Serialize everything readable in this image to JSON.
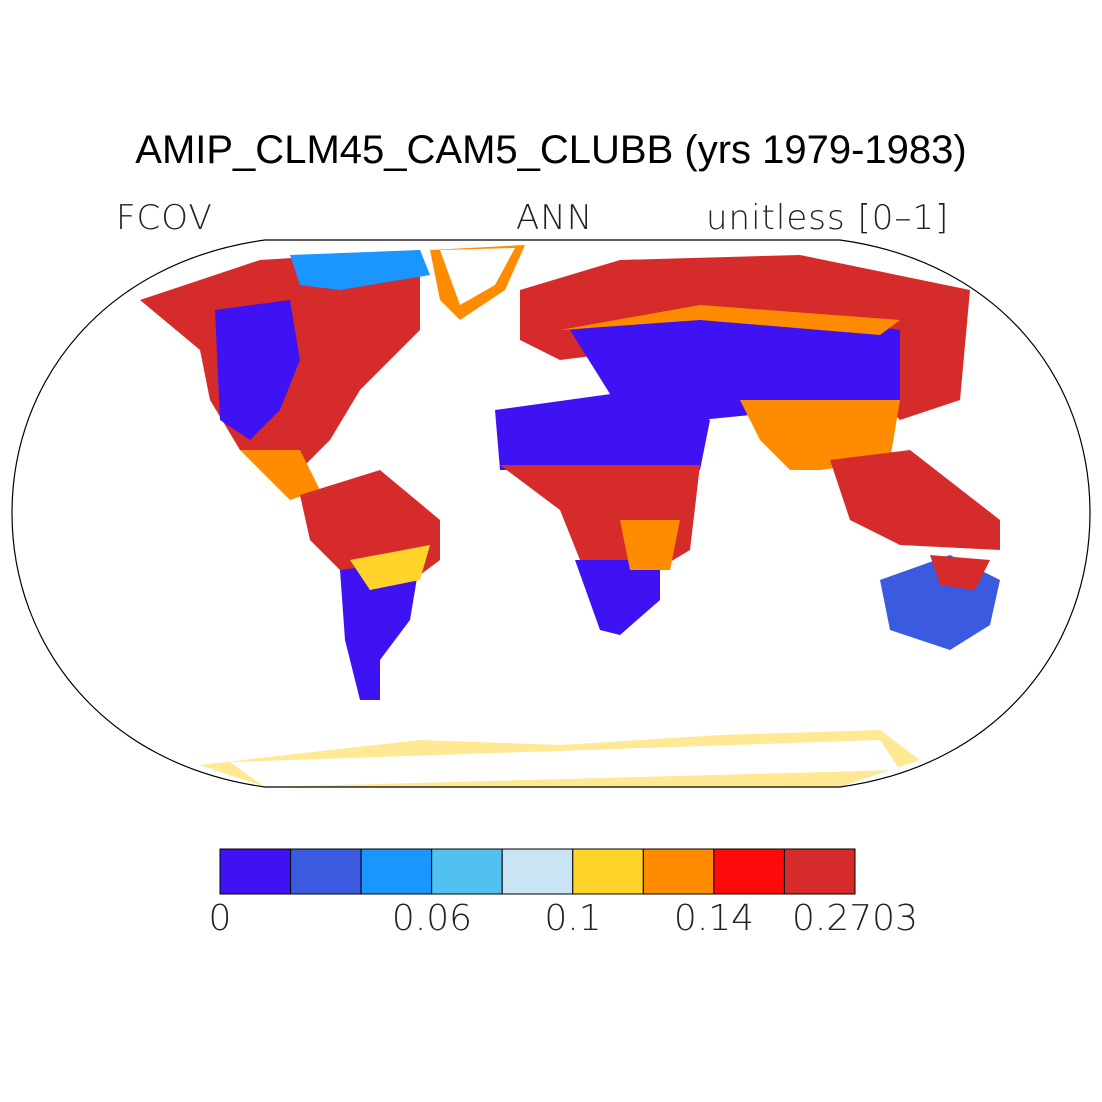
{
  "title": "AMIP_CLM45_CAM5_CLUBB (yrs 1979-1983)",
  "variable": "FCOV",
  "season": "ANN",
  "units": "unitless [0–1]",
  "colorbar": {
    "colors": [
      "#3f12f4",
      "#3a5be0",
      "#1996ff",
      "#51c1f2",
      "#c9e5f4",
      "#ffd42a",
      "#ff8b00",
      "#ff0a0a",
      "#d52b2b"
    ],
    "labels": [
      "0",
      "0.06",
      "0.1",
      "0.14",
      "0.2703"
    ]
  },
  "map": {
    "projection": "Robinson",
    "coastlines": true
  }
}
